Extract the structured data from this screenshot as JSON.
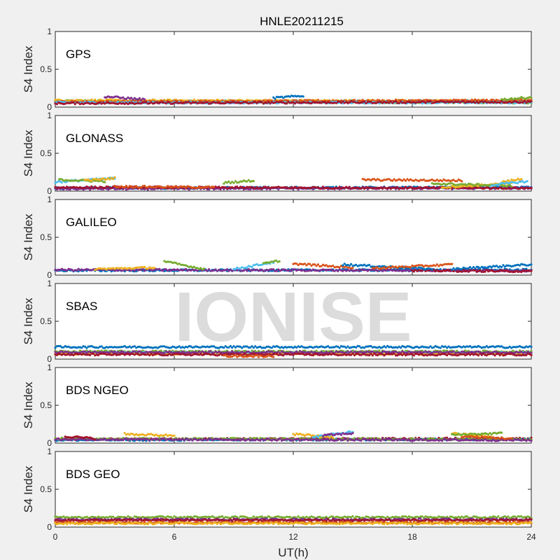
{
  "chart_data": {
    "type": "scatter",
    "title": "HNLE20211215",
    "xlabel": "UT(h)",
    "ylabel": "S4 Index",
    "xlim": [
      0,
      24
    ],
    "ylim": [
      0,
      1
    ],
    "xticks": [
      "0",
      "6",
      "12",
      "18",
      "24"
    ],
    "xtick_values": [
      0,
      6,
      12,
      18,
      24
    ],
    "yticks": [
      "0",
      "0.5",
      "1"
    ],
    "ytick_values": [
      0,
      0.5,
      1
    ],
    "watermark": "IONISE",
    "colors": [
      "#0072BD",
      "#D95319",
      "#EDB120",
      "#7E2F8E",
      "#77AC30",
      "#4DBEEE",
      "#A2142F"
    ],
    "panels": [
      {
        "label": "GPS",
        "tracks": [
          {
            "c": 0,
            "x": [
              0,
              24
            ],
            "y": [
              0.07,
              0.08
            ]
          },
          {
            "c": 3,
            "x": [
              0,
              24
            ],
            "y": [
              0.06,
              0.07
            ]
          },
          {
            "c": 4,
            "x": [
              0,
              24
            ],
            "y": [
              0.08,
              0.06
            ]
          },
          {
            "c": 2,
            "x": [
              0,
              24
            ],
            "y": [
              0.09,
              0.08
            ]
          },
          {
            "c": 1,
            "x": [
              0,
              24
            ],
            "y": [
              0.07,
              0.09
            ]
          },
          {
            "c": 5,
            "x": [
              0,
              24
            ],
            "y": [
              0.06,
              0.06
            ]
          },
          {
            "c": 6,
            "x": [
              0,
              24
            ],
            "y": [
              0.05,
              0.07
            ]
          },
          {
            "c": 3,
            "x": [
              2.5,
              4.5
            ],
            "y": [
              0.14,
              0.1
            ]
          },
          {
            "c": 0,
            "x": [
              11,
              12.5
            ],
            "y": [
              0.12,
              0.15
            ]
          },
          {
            "c": 4,
            "x": [
              22.5,
              24
            ],
            "y": [
              0.1,
              0.13
            ]
          }
        ]
      },
      {
        "label": "GLONASS",
        "tracks": [
          {
            "c": 0,
            "x": [
              0,
              24
            ],
            "y": [
              0.04,
              0.05
            ]
          },
          {
            "c": 3,
            "x": [
              0,
              24
            ],
            "y": [
              0.03,
              0.04
            ]
          },
          {
            "c": 6,
            "x": [
              0,
              24
            ],
            "y": [
              0.05,
              0.04
            ]
          },
          {
            "c": 5,
            "x": [
              0,
              3
            ],
            "y": [
              0.12,
              0.17
            ]
          },
          {
            "c": 4,
            "x": [
              0.2,
              2.5
            ],
            "y": [
              0.15,
              0.13
            ]
          },
          {
            "c": 2,
            "x": [
              1.5,
              3
            ],
            "y": [
              0.14,
              0.17
            ]
          },
          {
            "c": 4,
            "x": [
              8.5,
              10
            ],
            "y": [
              0.11,
              0.14
            ]
          },
          {
            "c": 1,
            "x": [
              3,
              8
            ],
            "y": [
              0.06,
              0.05
            ]
          },
          {
            "c": 1,
            "x": [
              15.5,
              20.5
            ],
            "y": [
              0.15,
              0.14
            ]
          },
          {
            "c": 2,
            "x": [
              19.5,
              23
            ],
            "y": [
              0.05,
              0.1
            ]
          },
          {
            "c": 4,
            "x": [
              19,
              23
            ],
            "y": [
              0.1,
              0.07
            ]
          },
          {
            "c": 2,
            "x": [
              22.5,
              23.5
            ],
            "y": [
              0.12,
              0.16
            ]
          },
          {
            "c": 5,
            "x": [
              22,
              23.8
            ],
            "y": [
              0.08,
              0.13
            ]
          }
        ]
      },
      {
        "label": "GALILEO",
        "tracks": [
          {
            "c": 0,
            "x": [
              0,
              24
            ],
            "y": [
              0.06,
              0.07
            ]
          },
          {
            "c": 3,
            "x": [
              0,
              24
            ],
            "y": [
              0.07,
              0.06
            ]
          },
          {
            "c": 6,
            "x": [
              18,
              24
            ],
            "y": [
              0.06,
              0.05
            ]
          },
          {
            "c": 2,
            "x": [
              2,
              5
            ],
            "y": [
              0.08,
              0.1
            ]
          },
          {
            "c": 4,
            "x": [
              5.5,
              7.5
            ],
            "y": [
              0.18,
              0.08
            ]
          },
          {
            "c": 5,
            "x": [
              9,
              11
            ],
            "y": [
              0.08,
              0.17
            ]
          },
          {
            "c": 4,
            "x": [
              10.5,
              11.3
            ],
            "y": [
              0.15,
              0.19
            ]
          },
          {
            "c": 1,
            "x": [
              12,
              15
            ],
            "y": [
              0.15,
              0.1
            ]
          },
          {
            "c": 0,
            "x": [
              14.5,
              19
            ],
            "y": [
              0.14,
              0.08
            ]
          },
          {
            "c": 1,
            "x": [
              16,
              20
            ],
            "y": [
              0.09,
              0.14
            ]
          },
          {
            "c": 0,
            "x": [
              20,
              24
            ],
            "y": [
              0.08,
              0.14
            ]
          }
        ]
      },
      {
        "label": "SBAS",
        "tracks": [
          {
            "c": 0,
            "x": [
              0,
              24
            ],
            "y": [
              0.16,
              0.16
            ]
          },
          {
            "c": 4,
            "x": [
              0,
              24
            ],
            "y": [
              0.1,
              0.1
            ]
          },
          {
            "c": 5,
            "x": [
              0,
              24
            ],
            "y": [
              0.08,
              0.08
            ]
          },
          {
            "c": 2,
            "x": [
              0,
              24
            ],
            "y": [
              0.07,
              0.07
            ]
          },
          {
            "c": 3,
            "x": [
              0,
              24
            ],
            "y": [
              0.09,
              0.09
            ]
          },
          {
            "c": 6,
            "x": [
              0,
              24
            ],
            "y": [
              0.06,
              0.06
            ]
          },
          {
            "c": 1,
            "x": [
              8.5,
              11
            ],
            "y": [
              0.04,
              0.04
            ]
          }
        ]
      },
      {
        "label": "BDS NGEO",
        "tracks": [
          {
            "c": 6,
            "x": [
              0,
              24
            ],
            "y": [
              0.05,
              0.06
            ]
          },
          {
            "c": 0,
            "x": [
              0,
              24
            ],
            "y": [
              0.04,
              0.05
            ]
          },
          {
            "c": 4,
            "x": [
              0,
              24
            ],
            "y": [
              0.06,
              0.05
            ]
          },
          {
            "c": 3,
            "x": [
              0,
              24
            ],
            "y": [
              0.05,
              0.04
            ]
          },
          {
            "c": 2,
            "x": [
              3.5,
              6
            ],
            "y": [
              0.12,
              0.1
            ]
          },
          {
            "c": 6,
            "x": [
              0.5,
              2
            ],
            "y": [
              0.09,
              0.06
            ]
          },
          {
            "c": 2,
            "x": [
              12,
              14
            ],
            "y": [
              0.12,
              0.08
            ]
          },
          {
            "c": 5,
            "x": [
              13,
              15
            ],
            "y": [
              0.08,
              0.15
            ]
          },
          {
            "c": 3,
            "x": [
              13.5,
              15
            ],
            "y": [
              0.1,
              0.13
            ]
          },
          {
            "c": 2,
            "x": [
              20,
              22
            ],
            "y": [
              0.13,
              0.08
            ]
          },
          {
            "c": 4,
            "x": [
              20,
              22.5
            ],
            "y": [
              0.11,
              0.13
            ]
          },
          {
            "c": 1,
            "x": [
              20.5,
              23
            ],
            "y": [
              0.09,
              0.06
            ]
          }
        ]
      },
      {
        "label": "BDS GEO",
        "tracks": [
          {
            "c": 4,
            "x": [
              0,
              24
            ],
            "y": [
              0.13,
              0.13
            ]
          },
          {
            "c": 3,
            "x": [
              0,
              24
            ],
            "y": [
              0.1,
              0.1
            ]
          },
          {
            "c": 6,
            "x": [
              0,
              24
            ],
            "y": [
              0.09,
              0.09
            ]
          },
          {
            "c": 1,
            "x": [
              0,
              24
            ],
            "y": [
              0.06,
              0.06
            ]
          },
          {
            "c": 2,
            "x": [
              0,
              24
            ],
            "y": [
              0.05,
              0.05
            ]
          }
        ]
      }
    ]
  }
}
